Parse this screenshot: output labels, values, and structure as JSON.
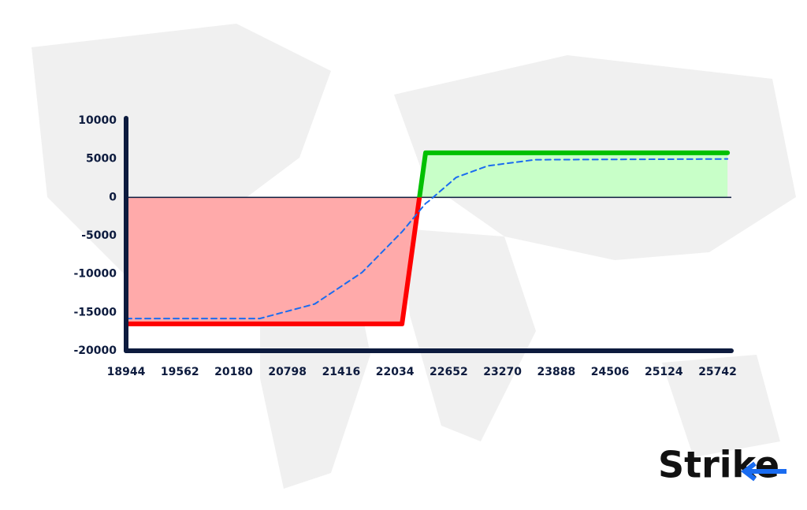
{
  "chart_data": {
    "type": "line",
    "x": [
      18944,
      20480,
      21112,
      21655,
      22106,
      22115,
      22386,
      22422,
      22738,
      23100,
      23642,
      25856
    ],
    "series": [
      {
        "color": "#ff0000",
        "values": [
          -16500,
          -16500,
          -16500,
          -16500,
          -16500,
          -16500,
          5800,
          5800,
          5800,
          5800,
          5800,
          5800
        ],
        "fill_negative": "#ffaaaa",
        "fill_positive": "#c8ffc8",
        "positive_color": "#00c000"
      },
      {
        "color": "#1a6cf0",
        "dashed": true,
        "values": [
          -15800,
          -15800,
          -13900,
          -9800,
          -4600,
          -4500,
          -800,
          -500,
          2600,
          4100,
          4900,
          5000
        ]
      }
    ],
    "xlim": [
      18944,
      25900
    ],
    "ylim": [
      -20000,
      10000
    ],
    "xticks": [
      18944,
      19562,
      20180,
      20798,
      21416,
      22034,
      22652,
      23270,
      23888,
      24506,
      25124,
      25742
    ],
    "yticks": [
      10000,
      5000,
      0,
      -5000,
      -10000,
      -15000,
      -20000
    ],
    "brand": "Strike"
  }
}
